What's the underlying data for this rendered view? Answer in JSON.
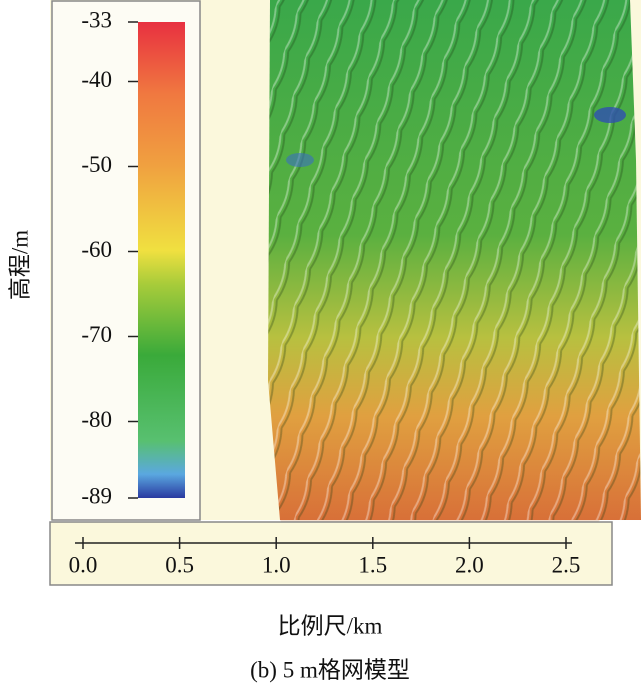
{
  "colorbar": {
    "label": "高程/m",
    "range": [
      -89,
      -33
    ],
    "ticks": [
      -33,
      -40,
      -50,
      -60,
      -70,
      -80,
      -89
    ]
  },
  "scale_bar": {
    "label": "比例尺/km",
    "range": [
      0,
      2.5
    ],
    "ticks": [
      {
        "value": 0,
        "label": "0.0"
      },
      0.5,
      {
        "value": 1,
        "label": "1.0"
      },
      1.5,
      {
        "value": 2,
        "label": "2.0"
      },
      2.5
    ]
  },
  "caption": "(b) 5 m格网模型"
}
